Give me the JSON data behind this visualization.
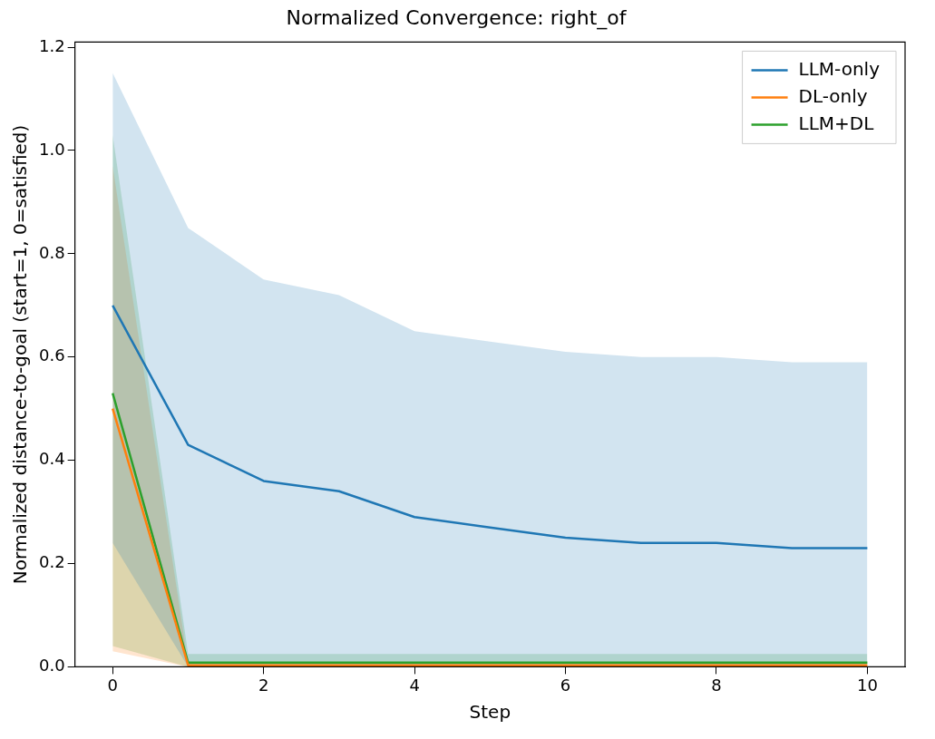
{
  "chart_data": {
    "type": "line",
    "title": "Normalized Convergence: right_of",
    "xlabel": "Step",
    "ylabel": "Normalized distance-to-goal (start=1, 0=satisfied)",
    "x": [
      0,
      1,
      2,
      3,
      4,
      5,
      6,
      7,
      8,
      9,
      10
    ],
    "series": [
      {
        "name": "LLM-only",
        "color": "#1f77b4",
        "values": [
          0.7,
          0.43,
          0.36,
          0.34,
          0.29,
          0.27,
          0.25,
          0.24,
          0.24,
          0.23,
          0.23
        ],
        "lower": [
          0.24,
          0,
          0,
          0,
          0,
          0,
          0,
          0,
          0,
          0,
          0
        ],
        "upper": [
          1.15,
          0.85,
          0.75,
          0.72,
          0.65,
          0.63,
          0.61,
          0.6,
          0.6,
          0.59,
          0.59
        ]
      },
      {
        "name": "DL-only",
        "color": "#ff7f0e",
        "values": [
          0.5,
          0.003,
          0.003,
          0.003,
          0.003,
          0.003,
          0.003,
          0.003,
          0.003,
          0.003,
          0.003
        ],
        "lower": [
          0.03,
          0,
          0,
          0,
          0,
          0,
          0,
          0,
          0,
          0,
          0
        ],
        "upper": [
          0.97,
          0.006,
          0.006,
          0.006,
          0.006,
          0.006,
          0.006,
          0.006,
          0.006,
          0.006,
          0.006
        ]
      },
      {
        "name": "LLM+DL",
        "color": "#2ca02c",
        "values": [
          0.53,
          0.008,
          0.008,
          0.008,
          0.008,
          0.008,
          0.008,
          0.008,
          0.008,
          0.008,
          0.008
        ],
        "lower": [
          0.04,
          0,
          0,
          0,
          0,
          0,
          0,
          0,
          0,
          0,
          0
        ],
        "upper": [
          1.03,
          0.025,
          0.025,
          0.025,
          0.025,
          0.025,
          0.025,
          0.025,
          0.025,
          0.025,
          0.025
        ]
      }
    ],
    "xlim": [
      -0.5,
      10.5
    ],
    "xticks": [
      0,
      2,
      4,
      6,
      8,
      10
    ],
    "ylim": [
      0,
      1.21
    ],
    "yticks": [
      {
        "value": 0,
        "label": "0.0"
      },
      {
        "value": 0.2,
        "label": "0.2"
      },
      {
        "value": 0.4,
        "label": "0.4"
      },
      {
        "value": 0.6,
        "label": "0.6"
      },
      {
        "value": 0.8,
        "label": "0.8"
      },
      {
        "value": 1,
        "label": "1.0"
      },
      {
        "value": 1.2,
        "label": "1.2"
      }
    ],
    "grid": false,
    "legend": "top right",
    "marker": "none",
    "line_style": "solid"
  }
}
